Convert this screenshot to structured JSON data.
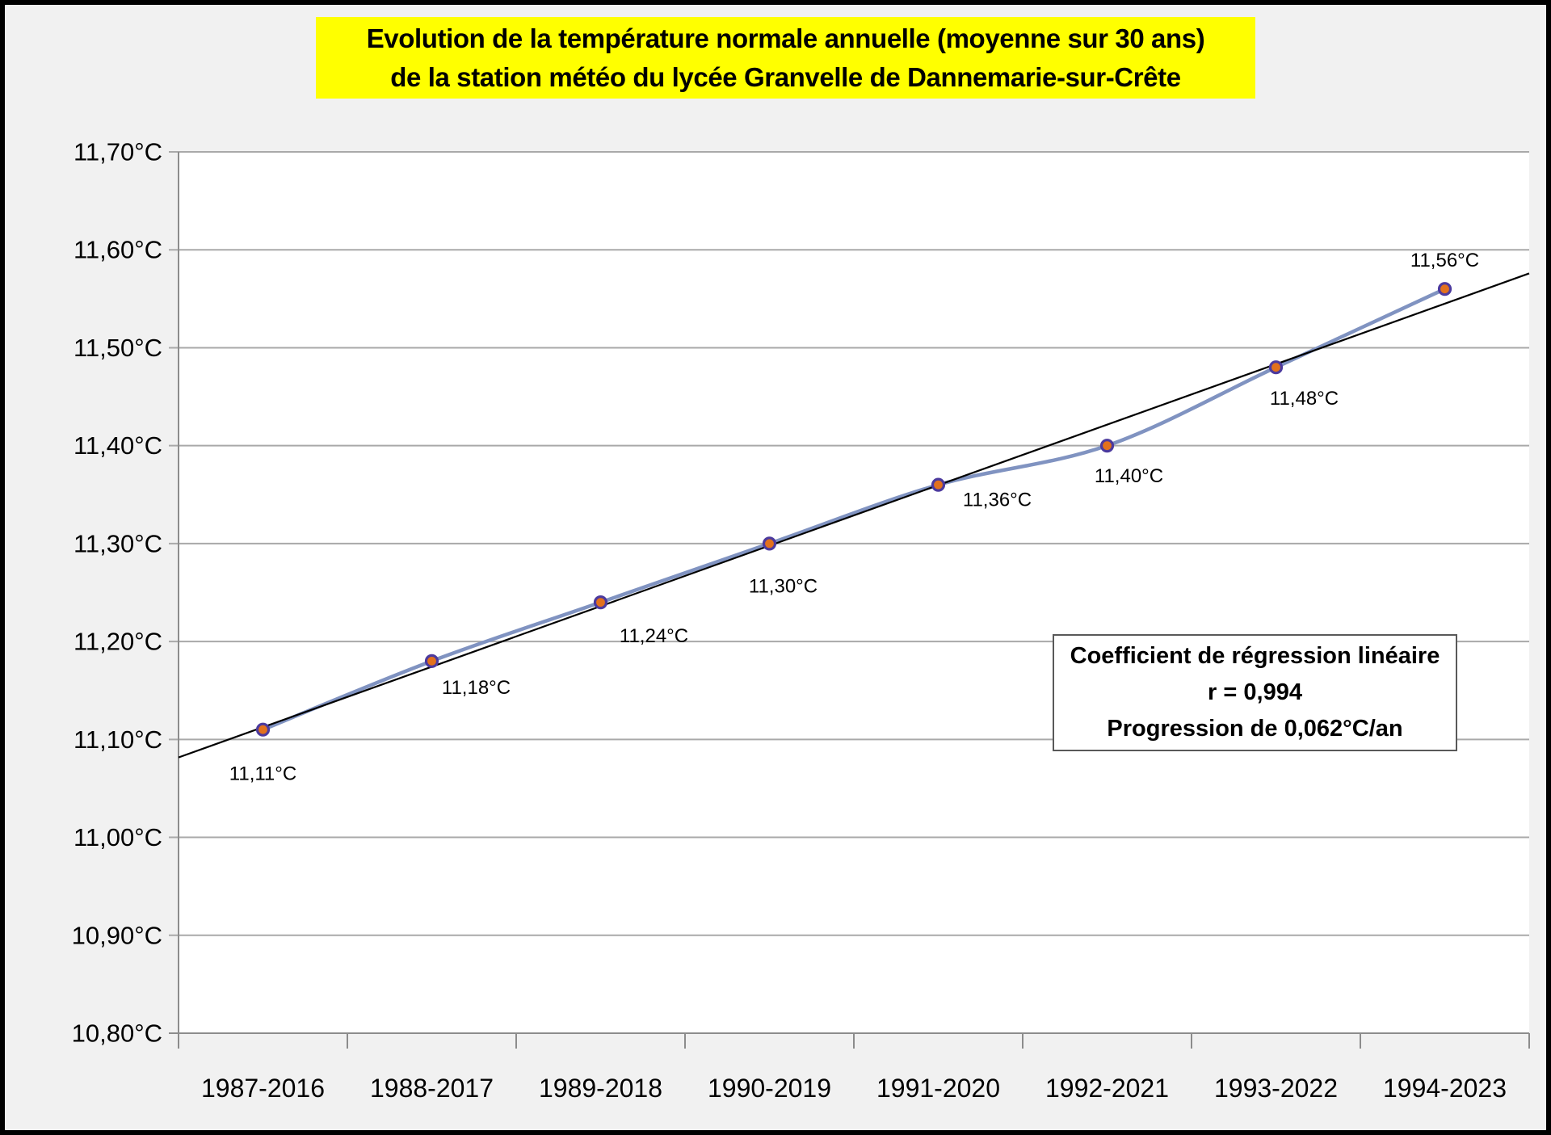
{
  "title": {
    "line1": "Evolution de la température normale annuelle (moyenne sur 30 ans)",
    "line2": "de la station météo du lycée Granvelle de Dannemarie-sur-Crête",
    "bg_color": "#FFFF00"
  },
  "annotation": {
    "line1": "Coefficient de régression linéaire",
    "line2": "r = 0,994",
    "line3": "Progression de 0,062°C/an"
  },
  "chart_data": {
    "type": "line",
    "title": "Evolution de la température normale annuelle (moyenne sur 30 ans) de la station météo du lycée Granvelle de Dannemarie-sur-Crête",
    "categories": [
      "1987-2016",
      "1988-2017",
      "1989-2018",
      "1990-2019",
      "1991-2020",
      "1992-2021",
      "1993-2022",
      "1994-2023"
    ],
    "values": [
      11.11,
      11.18,
      11.24,
      11.3,
      11.36,
      11.4,
      11.48,
      11.56
    ],
    "point_labels": [
      "11,11°C",
      "11,18°C",
      "11,24°C",
      "11,30°C",
      "11,36°C",
      "11,40°C",
      "11,48°C",
      "11,56°C"
    ],
    "y_tick_labels": [
      "11,70°C",
      "11,60°C",
      "11,50°C",
      "11,40°C",
      "11,30°C",
      "11,20°C",
      "11,10°C",
      "11,00°C",
      "10,90°C",
      "10,80°C"
    ],
    "ylim": [
      10.8,
      11.7
    ],
    "y_step": 0.1,
    "xlabel": "",
    "ylabel": "",
    "grid": true,
    "legend": "none",
    "trendline": true,
    "smoothed_line": true,
    "colors": {
      "series_line": "#8093C1",
      "marker_fill": "#E2711D",
      "marker_stroke": "#4C3A9E",
      "trend_line": "#000000",
      "gridline": "#A9A9A9",
      "axis": "#8C8C8C",
      "plot_bg": "#FFFFFF",
      "page_bg": "#F1F1F1",
      "title_bg": "#FFFF00",
      "annotation_border": "#595959",
      "text": "#000000"
    }
  }
}
